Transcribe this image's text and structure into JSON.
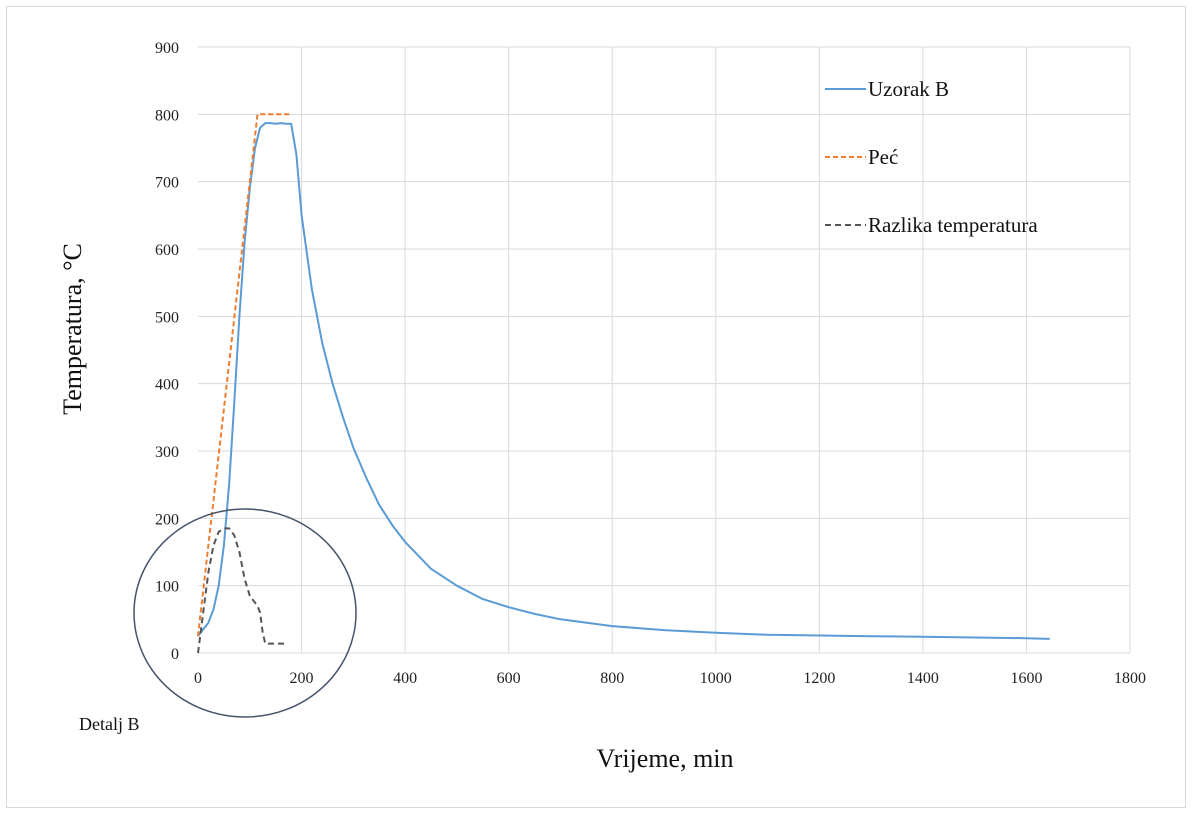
{
  "chart_data": {
    "type": "line",
    "xlabel": "Vrijeme, min",
    "ylabel": "Temperatura, °C",
    "xlim": [
      0,
      1800
    ],
    "ylim": [
      0,
      900
    ],
    "x_ticks": [
      "0",
      "200",
      "400",
      "600",
      "800",
      "1000",
      "1200",
      "1400",
      "1600",
      "1800"
    ],
    "y_ticks": [
      "0",
      "100",
      "200",
      "300",
      "400",
      "500",
      "600",
      "700",
      "800",
      "900"
    ],
    "grid": true,
    "legend_position": "top-right",
    "annotation": "Detalj B",
    "series": [
      {
        "name": "Uzorak B",
        "color": "#5b9bd5",
        "style": "solid",
        "x": [
          0,
          10,
          20,
          30,
          40,
          50,
          60,
          70,
          80,
          90,
          100,
          110,
          120,
          130,
          140,
          150,
          160,
          170,
          180,
          190,
          200,
          220,
          240,
          260,
          280,
          300,
          325,
          350,
          375,
          400,
          450,
          500,
          550,
          600,
          650,
          700,
          800,
          900,
          1000,
          1100,
          1200,
          1300,
          1400,
          1500,
          1600,
          1645
        ],
        "y": [
          25,
          35,
          45,
          65,
          100,
          160,
          250,
          370,
          500,
          610,
          690,
          750,
          780,
          787,
          787,
          786,
          787,
          786,
          786,
          740,
          650,
          540,
          460,
          400,
          350,
          305,
          260,
          220,
          190,
          165,
          125,
          100,
          80,
          68,
          58,
          50,
          40,
          34,
          30,
          27,
          26,
          25,
          24,
          23,
          22,
          21
        ]
      },
      {
        "name": "Peć",
        "color": "#ed7d31",
        "style": "dashed",
        "x": [
          0,
          115,
          180
        ],
        "y": [
          25,
          800,
          800
        ]
      },
      {
        "name": "Razlika temperatura",
        "color": "#555555",
        "style": "dashed",
        "x": [
          0,
          5,
          10,
          20,
          30,
          40,
          50,
          60,
          70,
          80,
          90,
          100,
          115,
          120,
          125,
          130,
          140,
          150,
          170
        ],
        "y": [
          0,
          30,
          60,
          120,
          160,
          180,
          185,
          185,
          175,
          150,
          110,
          85,
          70,
          60,
          30,
          14,
          14,
          14,
          14
        ]
      }
    ]
  }
}
